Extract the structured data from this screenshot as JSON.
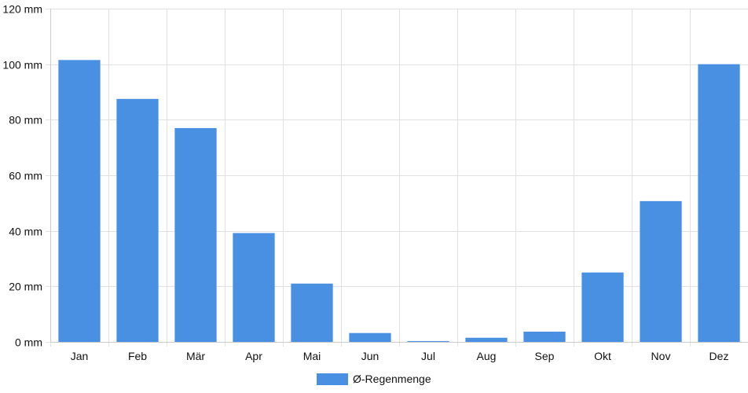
{
  "chart_data": {
    "type": "bar",
    "categories": [
      "Jan",
      "Feb",
      "Mär",
      "Apr",
      "Mai",
      "Jun",
      "Jul",
      "Aug",
      "Sep",
      "Okt",
      "Nov",
      "Dez"
    ],
    "series": [
      {
        "name": "Ø-Regenmenge",
        "values": [
          101.5,
          87.5,
          77,
          39.2,
          21,
          3.2,
          0.3,
          1.5,
          3.7,
          25,
          50.7,
          100
        ],
        "color": "#4a90e2"
      }
    ],
    "title": "",
    "xlabel": "",
    "ylabel": "",
    "ylim": [
      0,
      120
    ],
    "yticks": [
      {
        "value": 0,
        "label": "0 mm"
      },
      {
        "value": 20,
        "label": "20 mm"
      },
      {
        "value": 40,
        "label": "40 mm"
      },
      {
        "value": 60,
        "label": "60 mm"
      },
      {
        "value": 80,
        "label": "80 mm"
      },
      {
        "value": 100,
        "label": "100 mm"
      },
      {
        "value": 120,
        "label": "120 mm"
      }
    ],
    "grid": true,
    "legend": {
      "position": "bottom-center",
      "label": "Ø-Regenmenge"
    }
  }
}
